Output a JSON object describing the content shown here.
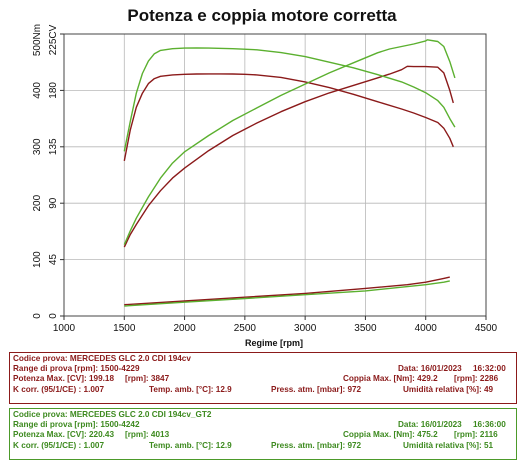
{
  "chart_data": {
    "type": "line",
    "title": "Potenza e coppia motore corretta",
    "xlabel": "Regime [rpm]",
    "x_ticks": [
      1000,
      1500,
      2000,
      2500,
      3000,
      3500,
      4000,
      4500
    ],
    "xlim": [
      1000,
      4500
    ],
    "y_torque_ticks": [
      0,
      100,
      200,
      300,
      400,
      500
    ],
    "y_torque_unit": "Nm",
    "y_power_ticks": [
      0,
      45,
      90,
      135,
      180,
      225
    ],
    "y_power_unit": "CV",
    "ylim_torque": [
      0,
      500
    ],
    "grid": true,
    "series": [
      {
        "color": "#8b1a1a",
        "kind": "torque",
        "x": [
          1500,
          1550,
          1600,
          1650,
          1700,
          1750,
          1800,
          1900,
          2000,
          2100,
          2200,
          2300,
          2400,
          2500,
          2600,
          2800,
          3000,
          3200,
          3400,
          3600,
          3800,
          3900,
          4000,
          4100,
          4150,
          4200,
          4229
        ],
        "y": [
          275,
          330,
          370,
          395,
          412,
          421,
          425,
          427.5,
          428.5,
          429,
          429.2,
          429.2,
          429,
          428.5,
          427.5,
          423,
          415,
          405,
          393,
          380,
          367,
          360,
          352,
          343,
          333,
          315,
          300
        ]
      },
      {
        "color": "#8b1a1a",
        "kind": "power",
        "x": [
          1500,
          1550,
          1600,
          1700,
          1800,
          1900,
          2000,
          2200,
          2400,
          2600,
          2800,
          3000,
          3200,
          3400,
          3600,
          3700,
          3800,
          3847,
          3900,
          4000,
          4100,
          4150,
          4200,
          4229
        ],
        "y": [
          55,
          65,
          73,
          88,
          100,
          110,
          118,
          132,
          144,
          154,
          163,
          171,
          178,
          184,
          190,
          193,
          196.5,
          199.2,
          199,
          199,
          198.5,
          194,
          180,
          170
        ]
      },
      {
        "color": "#5bb02f",
        "kind": "torque",
        "x": [
          1500,
          1550,
          1600,
          1650,
          1700,
          1750,
          1800,
          1900,
          2000,
          2100,
          2200,
          2400,
          2600,
          2800,
          3000,
          3200,
          3400,
          3600,
          3800,
          3900,
          4000,
          4100,
          4150,
          4200,
          4242
        ],
        "y": [
          292,
          345,
          395,
          430,
          452,
          465,
          471,
          474,
          475,
          475.2,
          475,
          474,
          472,
          467,
          460,
          450,
          440,
          428,
          415,
          406,
          396,
          382,
          370,
          350,
          335
        ]
      },
      {
        "color": "#5bb02f",
        "kind": "power",
        "x": [
          1500,
          1550,
          1600,
          1700,
          1800,
          1900,
          2000,
          2200,
          2400,
          2600,
          2800,
          3000,
          3200,
          3400,
          3600,
          3700,
          3800,
          3900,
          4000,
          4013,
          4100,
          4150,
          4200,
          4242
        ],
        "y": [
          57,
          68,
          78,
          95,
          110,
          122,
          131,
          144,
          156,
          166,
          176,
          185,
          194,
          202,
          210,
          213,
          215,
          217,
          219.5,
          220.4,
          219,
          215,
          203,
          190
        ]
      },
      {
        "color": "#8b1a1a",
        "kind": "loss_power",
        "x": [
          1500,
          2000,
          2500,
          3000,
          3500,
          3847,
          4000,
          4150,
          4200
        ],
        "y": [
          9,
          12,
          15,
          18,
          22,
          25,
          27,
          30,
          31
        ]
      },
      {
        "color": "#5bb02f",
        "kind": "loss_power",
        "x": [
          1500,
          2000,
          2500,
          3000,
          3500,
          4000,
          4150,
          4200
        ],
        "y": [
          8,
          11,
          14,
          17,
          20,
          25,
          27,
          28
        ]
      }
    ]
  },
  "tests": [
    {
      "code": "Codice prova: MERCEDES GLC 2.0 CDI 194cv",
      "range": "Range di prova [rpm]: 1500-4229",
      "date": "Data: 16/01/2023",
      "time": "16:32:00",
      "power_max": "Potenza Max. [CV]: 199.18",
      "power_rpm": "[rpm]: 3847",
      "torque_max": "Coppia Max. [Nm]: 429.2",
      "torque_rpm": "[rpm]: 2286",
      "k_corr": "K corr. (95/1/CE) : 1.007",
      "temp": "Temp. amb. [°C]: 12.9",
      "press": "Press. atm. [mbar]: 972",
      "humidity": "Umidità relativa [%]: 49"
    },
    {
      "code": "Codice prova: MERCEDES GLC 2.0 CDI 194cv_GT2",
      "range": "Range di prova [rpm]: 1500-4242",
      "date": "Data: 16/01/2023",
      "time": "16:36:00",
      "power_max": "Potenza Max. [CV]: 220.43",
      "power_rpm": "[rpm]: 4013",
      "torque_max": "Coppia Max. [Nm]: 475.2",
      "torque_rpm": "[rpm]: 2116",
      "k_corr": "K corr. (95/1/CE) : 1.007",
      "temp": "Temp. amb. [°C]: 12.9",
      "press": "Press. atm. [mbar]: 972",
      "humidity": "Umidità relativa [%]: 51"
    }
  ]
}
